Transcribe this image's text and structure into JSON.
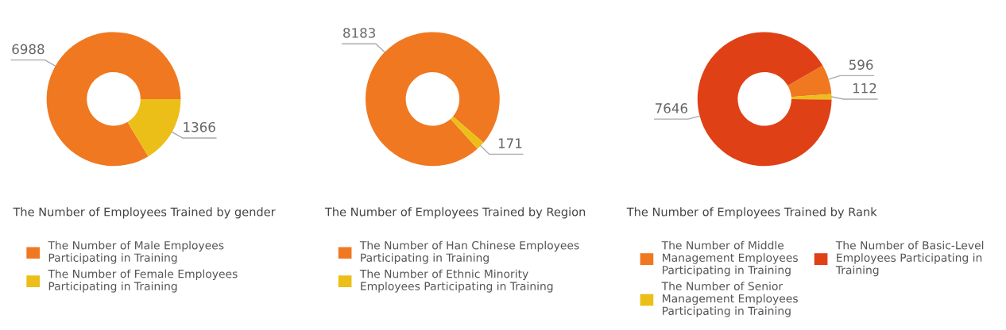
{
  "chart_data": [
    {
      "type": "donut",
      "title": "The Number of Employees Trained by gender",
      "categories": [
        "The Number of Male Employees\nParticipating in Training",
        "The Number of Female Employees\nParticipating in Training"
      ],
      "values": [
        6988,
        1366
      ],
      "colors": [
        "#f07820",
        "#ecbf18"
      ],
      "data_labels": true,
      "legend": "bottom"
    },
    {
      "type": "donut",
      "title": "The Number of Employees Trained by Region",
      "categories": [
        "The Number of Han Chinese Employees\nParticipating in Training",
        "The Number of Ethnic Minority\nEmployees Participating in Training"
      ],
      "values": [
        8183,
        171
      ],
      "colors": [
        "#f07820",
        "#ecbf18"
      ],
      "data_labels": true,
      "legend": "bottom"
    },
    {
      "type": "donut",
      "title": "The Number of Employees Trained by Rank",
      "categories": [
        "The Number of Middle\nManagement Employees\nParticipating in Training",
        "The Number of Senior\nManagement Employees\nParticipating in Training",
        "The Number of Basic-Level\nEmployees Participating in\nTraining"
      ],
      "values": [
        596,
        112,
        7646
      ],
      "colors": [
        "#f07820",
        "#ecbf18",
        "#e04016"
      ],
      "data_labels": true,
      "legend": "bottom"
    }
  ]
}
